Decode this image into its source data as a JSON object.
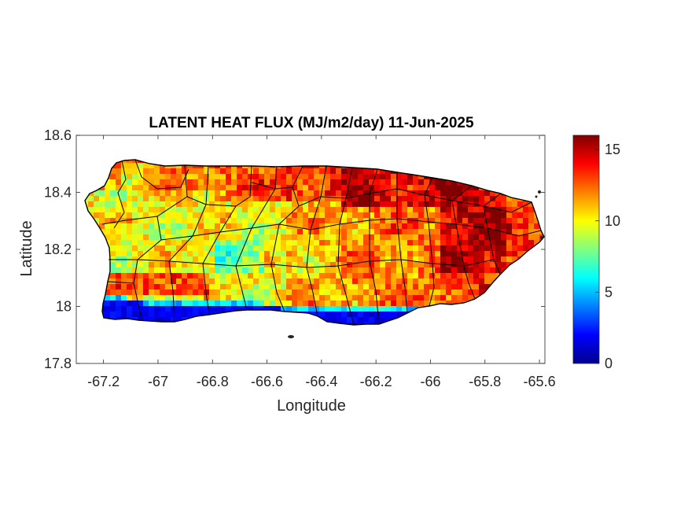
{
  "chart_data": {
    "type": "heatmap",
    "title": "LATENT HEAT FLUX (MJ/m2/day) 11-Jun-2025",
    "xlabel": "Longitude",
    "ylabel": "Latitude",
    "xlim": [
      -67.3,
      -65.58
    ],
    "ylim": [
      17.8,
      18.6
    ],
    "xticks": [
      -67.2,
      -67,
      -66.8,
      -66.6,
      -66.4,
      -66.2,
      -66,
      -65.8,
      -65.6
    ],
    "xtick_labels": [
      "-67.2",
      "-67",
      "-66.8",
      "-66.6",
      "-66.4",
      "-66.2",
      "-66",
      "-65.8",
      "-65.6"
    ],
    "yticks": [
      17.8,
      18,
      18.2,
      18.4,
      18.6
    ],
    "ytick_labels": [
      "17.8",
      "18",
      "18.2",
      "18.4",
      "18.6"
    ],
    "colorbar": {
      "colormap": "jet",
      "range": [
        0,
        16
      ],
      "ticks": [
        0,
        5,
        10,
        15
      ],
      "tick_labels": [
        "0",
        "5",
        "10",
        "15"
      ]
    },
    "field_summary": {
      "south_coast": 1,
      "southwest_plains": 10,
      "central_west": 10,
      "central_east": 12,
      "north_coast": 13.5,
      "northeast": 15,
      "east_coast": 13
    },
    "grid": "off",
    "overlay": "municipality boundaries"
  },
  "colors": {
    "jet": [
      "#00008f",
      "#0000ff",
      "#0080ff",
      "#00ffff",
      "#80ff80",
      "#ffff00",
      "#ff8000",
      "#ff0000",
      "#800000"
    ],
    "boundary": "#000000"
  }
}
